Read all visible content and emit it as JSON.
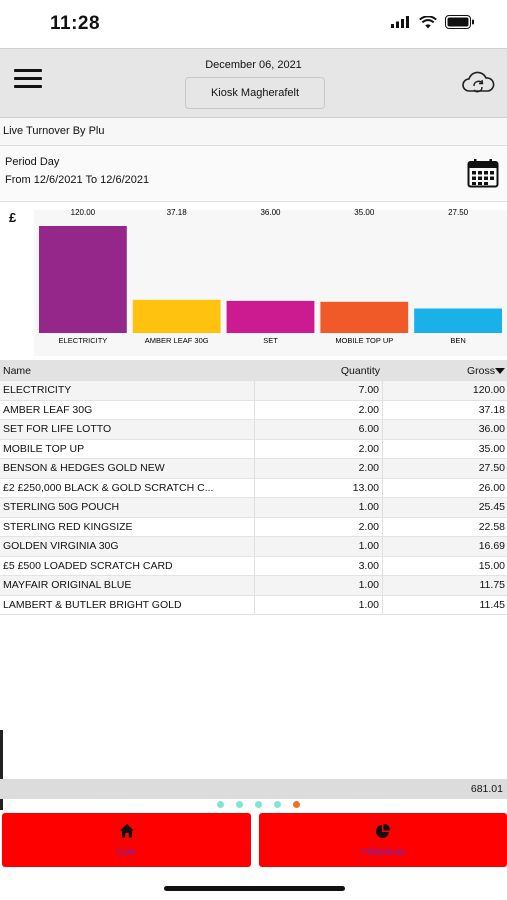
{
  "status_bar": {
    "time": "11:28"
  },
  "header": {
    "date": "December 06, 2021",
    "store": "Kiosk Magherafelt"
  },
  "report": {
    "title": "Live Turnover By Plu"
  },
  "period": {
    "label": "Period Day",
    "range": "From 12/6/2021 To 12/6/2021"
  },
  "chart_data": {
    "type": "bar",
    "ylabel": "£",
    "categories": [
      "ELECTRICITY",
      "AMBER LEAF 30G",
      "SET",
      "MOBILE TOP UP",
      "BEN"
    ],
    "values": [
      120.0,
      37.18,
      36.0,
      35.0,
      27.5
    ],
    "value_labels": [
      "120.00",
      "37.18",
      "36.00",
      "35.00",
      "27.50"
    ],
    "colors": [
      "#96278a",
      "#ffc20e",
      "#cc1a91",
      "#f05a28",
      "#1ab0ea"
    ],
    "ylim": [
      0,
      120
    ],
    "grid": false,
    "legend": "none"
  },
  "table": {
    "headers": {
      "name": "Name",
      "quantity": "Quantity",
      "gross": "Gross"
    },
    "rows": [
      {
        "name": "ELECTRICITY",
        "qty": "7.00",
        "gross": "120.00"
      },
      {
        "name": "AMBER LEAF 30G",
        "qty": "2.00",
        "gross": "37.18"
      },
      {
        "name": "SET FOR LIFE LOTTO",
        "qty": "6.00",
        "gross": "36.00"
      },
      {
        "name": "MOBILE TOP UP",
        "qty": "2.00",
        "gross": "35.00"
      },
      {
        "name": "BENSON & HEDGES GOLD NEW",
        "qty": "2.00",
        "gross": "27.50"
      },
      {
        "name": "£2 £250,000 BLACK & GOLD SCRATCH C...",
        "qty": "13.00",
        "gross": "26.00"
      },
      {
        "name": "STERLING 50G POUCH",
        "qty": "1.00",
        "gross": "25.45"
      },
      {
        "name": "STERLING RED KINGSIZE",
        "qty": "2.00",
        "gross": "22.58"
      },
      {
        "name": "GOLDEN VIRGINIA 30G",
        "qty": "1.00",
        "gross": "16.69"
      },
      {
        "name": "£5 £500 LOADED SCRATCH CARD",
        "qty": "3.00",
        "gross": "15.00"
      },
      {
        "name": "MAYFAIR ORIGINAL BLUE",
        "qty": "1.00",
        "gross": "11.75"
      },
      {
        "name": "LAMBERT & BUTLER BRIGHT GOLD",
        "qty": "1.00",
        "gross": "11.45"
      }
    ],
    "total": "681.01"
  },
  "pager": {
    "count": 5,
    "active": 4,
    "colors": {
      "inactive": "#7fe6d6",
      "active": "#e8722c"
    }
  },
  "tabs": {
    "live": "Live",
    "historical": "Historical",
    "tab_color": "#ff0000"
  }
}
